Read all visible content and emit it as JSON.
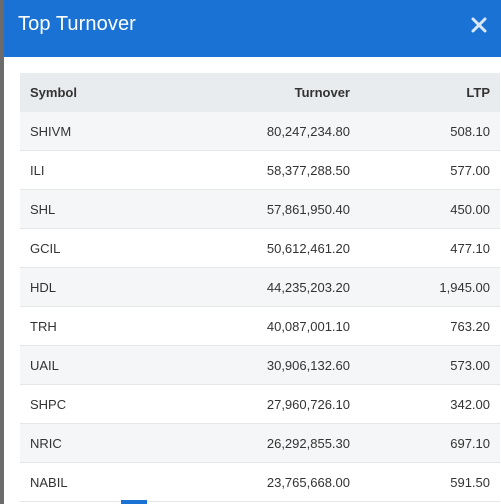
{
  "modal": {
    "title": "Top Turnover"
  },
  "table": {
    "headers": {
      "symbol": "Symbol",
      "turnover": "Turnover",
      "ltp": "LTP"
    },
    "rows": [
      {
        "symbol": "SHIVM",
        "turnover": "80,247,234.80",
        "ltp": "508.10"
      },
      {
        "symbol": "ILI",
        "turnover": "58,377,288.50",
        "ltp": "577.00"
      },
      {
        "symbol": "SHL",
        "turnover": "57,861,950.40",
        "ltp": "450.00"
      },
      {
        "symbol": "GCIL",
        "turnover": "50,612,461.20",
        "ltp": "477.10"
      },
      {
        "symbol": "HDL",
        "turnover": "44,235,203.20",
        "ltp": "1,945.00"
      },
      {
        "symbol": "TRH",
        "turnover": "40,087,001.10",
        "ltp": "763.20"
      },
      {
        "symbol": "UAIL",
        "turnover": "30,906,132.60",
        "ltp": "573.00"
      },
      {
        "symbol": "SHPC",
        "turnover": "27,960,726.10",
        "ltp": "342.00"
      },
      {
        "symbol": "NRIC",
        "turnover": "26,292,855.30",
        "ltp": "697.10"
      },
      {
        "symbol": "NABIL",
        "turnover": "23,765,668.00",
        "ltp": "591.50"
      }
    ]
  },
  "colors": {
    "header_bg": "#1a73d4",
    "table_head_bg": "#e9ecef",
    "row_alt_bg": "#f5f6f7"
  },
  "icons": {
    "close": "close-icon"
  }
}
